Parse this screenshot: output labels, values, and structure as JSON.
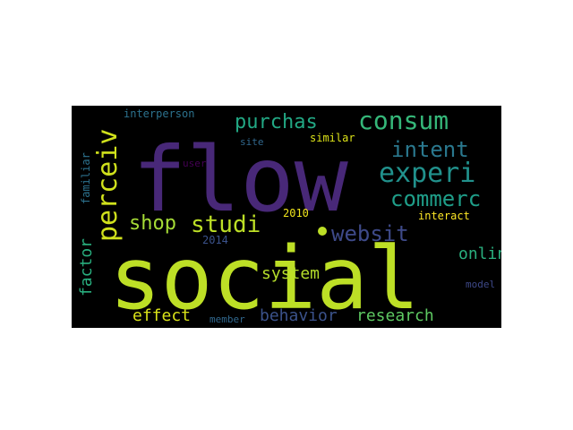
{
  "background_color": "#000000",
  "words": [
    {
      "text": "social",
      "color": "#bddf26"
    },
    {
      "text": "flow",
      "color": "#482878"
    },
    {
      "text": "experi",
      "color": "#21918c"
    },
    {
      "text": "consum",
      "color": "#35b779"
    },
    {
      "text": "purchas",
      "color": "#22a884"
    },
    {
      "text": "perceiv",
      "color": "#d0e11c"
    },
    {
      "text": "intent",
      "color": "#2a788e"
    },
    {
      "text": "commerc",
      "color": "#1f9e89"
    },
    {
      "text": "studi",
      "color": "#bddf26"
    },
    {
      "text": "shop",
      "color": "#a5db36"
    },
    {
      "text": "websit",
      "color": "#3e4a89"
    },
    {
      "text": "onlin",
      "color": "#2ab07f"
    },
    {
      "text": "factor",
      "color": "#29af7f"
    },
    {
      "text": "system",
      "color": "#b5de2b"
    },
    {
      "text": "behavior",
      "color": "#3b528b"
    },
    {
      "text": "research",
      "color": "#5ec962"
    },
    {
      "text": "effect",
      "color": "#dae319"
    },
    {
      "text": "interperson",
      "color": "#2c728e"
    },
    {
      "text": "similar",
      "color": "#dde318"
    },
    {
      "text": "site",
      "color": "#31688e"
    },
    {
      "text": "user",
      "color": "#440154"
    },
    {
      "text": "familiar",
      "color": "#2c728e"
    },
    {
      "text": "2010",
      "color": "#f0e51c"
    },
    {
      "text": "interact",
      "color": "#fde725"
    },
    {
      "text": "2014",
      "color": "#3b528b"
    },
    {
      "text": "model",
      "color": "#3e4989"
    },
    {
      "text": "member",
      "color": "#31688e"
    }
  ]
}
